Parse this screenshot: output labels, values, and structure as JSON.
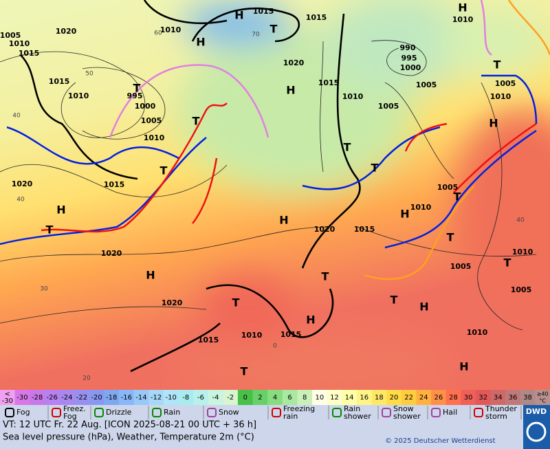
{
  "map": {
    "high_symbol": "H",
    "low_symbol": "T",
    "pressure_labels": [
      "1015",
      "1015",
      "1010",
      "1020",
      "1005",
      "1010",
      "1015",
      "1020",
      "990",
      "995",
      "1000",
      "1015",
      "1010",
      "995",
      "1000",
      "1015",
      "1010",
      "1005",
      "1005",
      "1005",
      "1010",
      "1005",
      "1010",
      "1020",
      "1015",
      "1005",
      "1010",
      "1020",
      "1015",
      "1020",
      "1010",
      "1005",
      "1020",
      "1005",
      "1015",
      "1010",
      "1015",
      "1010",
      "1010"
    ],
    "temperature_labels": [
      "50",
      "60",
      "70",
      "40",
      "40",
      "30",
      "20",
      "40",
      "0"
    ]
  },
  "colorbar": {
    "low_label": [
      "<",
      "-30"
    ],
    "high_label": [
      "≥40",
      "°C"
    ],
    "low_color": "#f0a0f0",
    "high_color": "#b89090",
    "values": [
      -30,
      -28,
      -26,
      -24,
      -22,
      -20,
      -18,
      -16,
      -14,
      -12,
      -10,
      -8,
      -6,
      -4,
      -2,
      0,
      2,
      4,
      6,
      8,
      10,
      12,
      14,
      16,
      18,
      20,
      22,
      24,
      26,
      28,
      30,
      32,
      34,
      36,
      38
    ],
    "colors": [
      "#d878e8",
      "#c878e8",
      "#b880f0",
      "#a888f0",
      "#9890f0",
      "#8898f0",
      "#80a8f0",
      "#88b8f8",
      "#98c8f8",
      "#a8d8f8",
      "#b0e4f8",
      "#a8ecf0",
      "#b8f0ec",
      "#c8f4e0",
      "#d8f4d0",
      "#48c048",
      "#68d068",
      "#88dc80",
      "#a8e8a0",
      "#c8f0b8",
      "#ffffe8",
      "#ffffc8",
      "#ffffa8",
      "#fff488",
      "#ffe868",
      "#ffdc48",
      "#ffcc40",
      "#ffb040",
      "#ff9048",
      "#ff7050",
      "#f06058",
      "#e05858",
      "#d06868",
      "#c07878",
      "#b08888"
    ]
  },
  "legend": [
    "Fog",
    "Freez.\nFog",
    "Drizzle",
    "Rain",
    "Snow",
    "Freezing\nrain",
    "Rain\nshower",
    "Snow\nshower",
    "Hail",
    "Thunder\nstorm"
  ],
  "footer": {
    "valid_time": "VT: 12 UTC Fr.  22 Aug. [ICON 2025-08-21  00 UTC + 36 h]",
    "description": "Sea level pressure (hPa), Weather, Temperature 2m (°C)",
    "copyright": "© 2025 Deutscher Wetterdienst",
    "logo": "DWD"
  }
}
